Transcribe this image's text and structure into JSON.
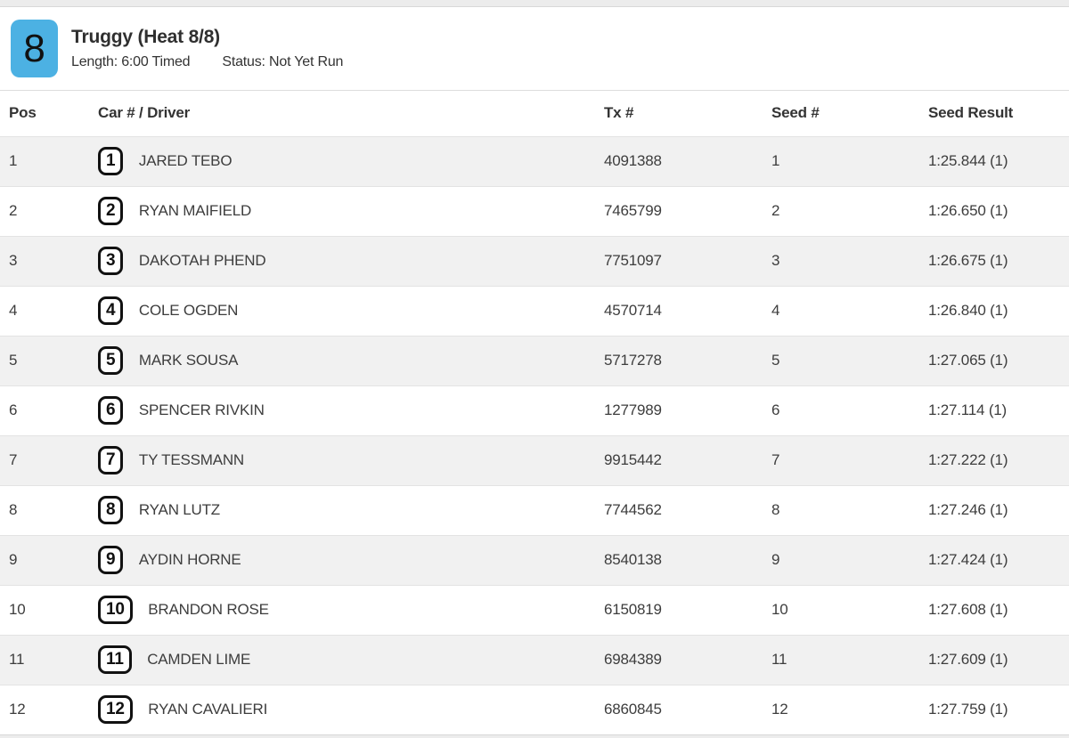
{
  "header": {
    "heat_number": "8",
    "title": "Truggy (Heat 8/8)",
    "length_text": "Length: 6:00 Timed",
    "status_text": "Status: Not Yet Run",
    "badge_color": "#4cb1e3"
  },
  "table": {
    "columns": [
      "Pos",
      "Car # / Driver",
      "Tx #",
      "Seed #",
      "Seed Result"
    ],
    "rows": [
      {
        "pos": "1",
        "car": "1",
        "driver": "JARED TEBO",
        "tx": "4091388",
        "seed": "1",
        "seed_result": "1:25.844 (1)"
      },
      {
        "pos": "2",
        "car": "2",
        "driver": "RYAN MAIFIELD",
        "tx": "7465799",
        "seed": "2",
        "seed_result": "1:26.650 (1)"
      },
      {
        "pos": "3",
        "car": "3",
        "driver": "DAKOTAH PHEND",
        "tx": "7751097",
        "seed": "3",
        "seed_result": "1:26.675 (1)"
      },
      {
        "pos": "4",
        "car": "4",
        "driver": "COLE OGDEN",
        "tx": "4570714",
        "seed": "4",
        "seed_result": "1:26.840 (1)"
      },
      {
        "pos": "5",
        "car": "5",
        "driver": "MARK SOUSA",
        "tx": "5717278",
        "seed": "5",
        "seed_result": "1:27.065 (1)"
      },
      {
        "pos": "6",
        "car": "6",
        "driver": "SPENCER RIVKIN",
        "tx": "1277989",
        "seed": "6",
        "seed_result": "1:27.114 (1)"
      },
      {
        "pos": "7",
        "car": "7",
        "driver": "TY TESSMANN",
        "tx": "9915442",
        "seed": "7",
        "seed_result": "1:27.222 (1)"
      },
      {
        "pos": "8",
        "car": "8",
        "driver": "RYAN LUTZ",
        "tx": "7744562",
        "seed": "8",
        "seed_result": "1:27.246 (1)"
      },
      {
        "pos": "9",
        "car": "9",
        "driver": "AYDIN HORNE",
        "tx": "8540138",
        "seed": "9",
        "seed_result": "1:27.424 (1)"
      },
      {
        "pos": "10",
        "car": "10",
        "driver": "BRANDON ROSE",
        "tx": "6150819",
        "seed": "10",
        "seed_result": "1:27.608 (1)"
      },
      {
        "pos": "11",
        "car": "11",
        "driver": "CAMDEN LIME",
        "tx": "6984389",
        "seed": "11",
        "seed_result": "1:27.609 (1)"
      },
      {
        "pos": "12",
        "car": "12",
        "driver": "RYAN CAVALIERI",
        "tx": "6860845",
        "seed": "12",
        "seed_result": "1:27.759 (1)"
      }
    ]
  }
}
